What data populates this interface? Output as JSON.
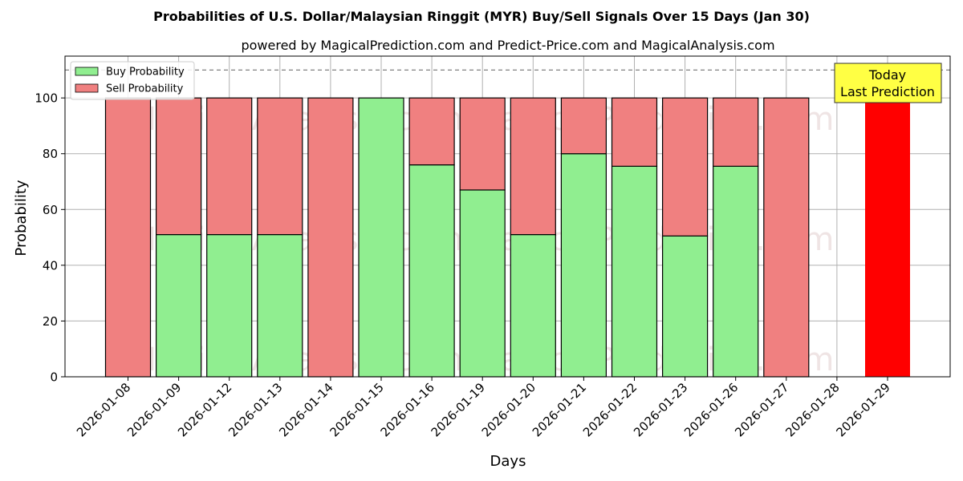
{
  "chart_data": {
    "type": "bar",
    "stacked": true,
    "title": "Probabilities of U.S. Dollar/Malaysian Ringgit (MYR) Buy/Sell Signals Over 15 Days (Jan 30)",
    "subtitle": "powered by MagicalPrediction.com and Predict-Price.com and MagicalAnalysis.com",
    "xlabel": "Days",
    "ylabel": "Probability",
    "ylim": [
      0,
      115
    ],
    "yticks": [
      0,
      20,
      40,
      60,
      80,
      100
    ],
    "reference_line": 110,
    "grid": true,
    "legend_position": "top-left",
    "categories": [
      "2026-01-08",
      "2026-01-09",
      "2026-01-12",
      "2026-01-13",
      "2026-01-14",
      "2026-01-15",
      "2026-01-16",
      "2026-01-19",
      "2026-01-20",
      "2026-01-21",
      "2026-01-22",
      "2026-01-23",
      "2026-01-26",
      "2026-01-27",
      "2026-01-28",
      "2026-01-29"
    ],
    "series": [
      {
        "name": "Buy Probability",
        "color": "#90ee90",
        "values": [
          0,
          51,
          51,
          51,
          0,
          100,
          76,
          67,
          51,
          80,
          75.5,
          50.5,
          75.5,
          0,
          0,
          0
        ]
      },
      {
        "name": "Sell Probability",
        "color": "#f08080",
        "values": [
          100,
          49,
          49,
          49,
          100,
          0,
          24,
          33,
          49,
          20,
          24.5,
          49.5,
          24.5,
          100,
          0,
          0
        ]
      }
    ],
    "highlight": {
      "category": "2026-01-29",
      "value": 100,
      "color": "#ff0000"
    },
    "annotation": {
      "lines": [
        "Today",
        "Last Prediction"
      ],
      "box_color": "#ffff44"
    },
    "watermark": "MagicalAnalysis.com    MagicalPrediction.com"
  }
}
